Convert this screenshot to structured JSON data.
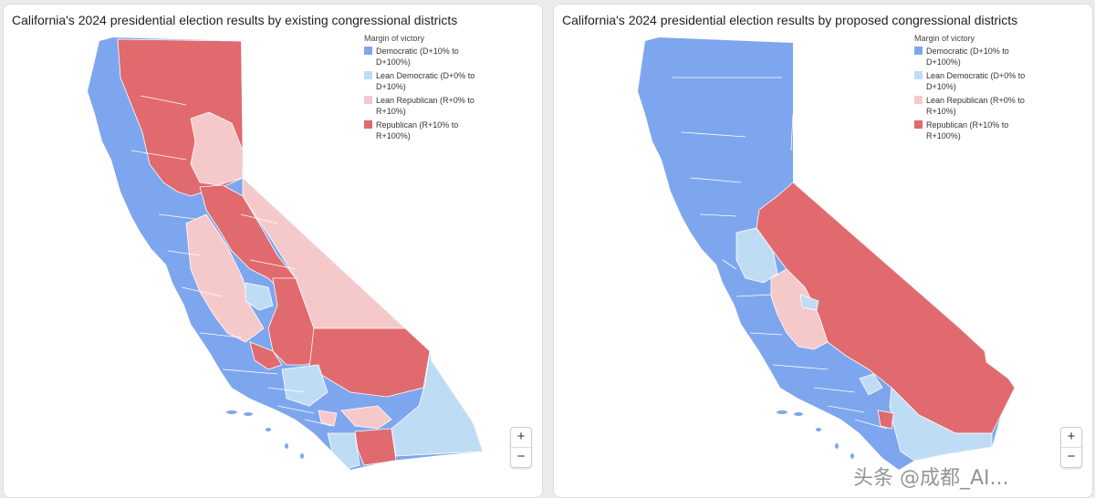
{
  "colors": {
    "democratic": "#7ea6ee",
    "lean_democratic": "#bfdcf5",
    "lean_republican": "#f5c9ca",
    "republican": "#e06a6d",
    "border": "#ffffff"
  },
  "legend": {
    "title": "Margin of victory",
    "items": [
      {
        "key": "democratic",
        "label": "Democratic (D+10% to D+100%)"
      },
      {
        "key": "lean_democratic",
        "label": "Lean Democratic (D+0% to D+10%)"
      },
      {
        "key": "lean_republican",
        "label": "Lean Republican (R+0% to R+10%)"
      },
      {
        "key": "republican",
        "label": "Republican (R+10% to R+100%)"
      }
    ]
  },
  "panels": [
    {
      "title": "California's 2024 presidential election results by existing congressional districts",
      "map_variant": "existing"
    },
    {
      "title": "California's 2024 presidential election results by proposed congressional districts",
      "map_variant": "proposed"
    }
  ],
  "zoom": {
    "in_label": "+",
    "out_label": "−"
  },
  "watermark": "头条 @成都_AI..."
}
